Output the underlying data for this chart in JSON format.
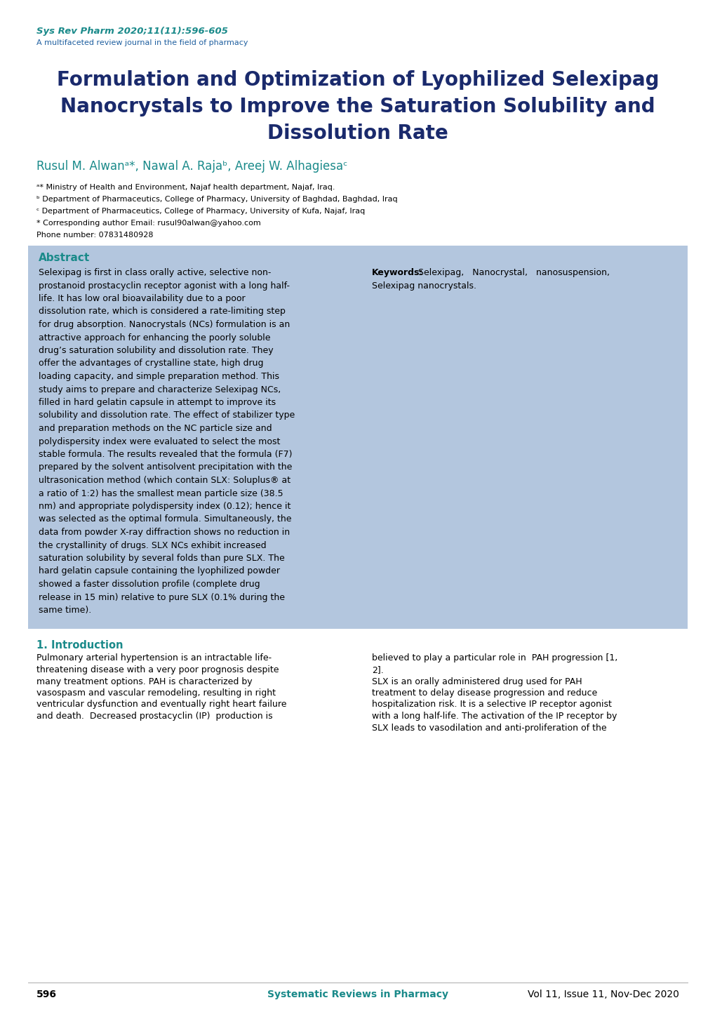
{
  "page_bg": "#ffffff",
  "header_journal": "Sys Rev Pharm 2020;11(11):596-605",
  "header_subtitle": "A multifaceted review journal in the field of pharmacy",
  "header_color": "#1a8a8a",
  "header_subtitle_color": "#2060a0",
  "title_line1": "Formulation and Optimization of Lyophilized Selexipag",
  "title_line2": "Nanocrystals to Improve the Saturation Solubility and",
  "title_line3": "Dissolution Rate",
  "title_color": "#1a2a6c",
  "authors": "Rusul M. Alwanᵃ*, Nawal A. Rajaᵇ, Areej W. Alhagiesaᶜ",
  "authors_color": "#1a8a8a",
  "affil_a": "ᵃ* Ministry of Health and Environment, Najaf health department, Najaf, Iraq.",
  "affil_b": "ᵇ Department of Pharmaceutics, College of Pharmacy, University of Baghdad, Baghdad, Iraq",
  "affil_c": "ᶜ Department of Pharmaceutics, College of Pharmacy, University of Kufa, Najaf, Iraq",
  "affil_corr": "* Corresponding author Email: rusul90alwan@yahoo.com",
  "affil_phone": "Phone number: 07831480928",
  "affil_color": "#000000",
  "abstract_bg": "#b3c6de",
  "abstract_title": "Abstract",
  "abstract_title_color": "#1a8a8a",
  "abstract_left_lines": [
    "Selexipag is first in class orally active, selective non-",
    "prostanoid prostacyclin receptor agonist with a long half-",
    "life. It has low oral bioavailability due to a poor",
    "dissolution rate, which is considered a rate-limiting step",
    "for drug absorption. Nanocrystals (NCs) formulation is an",
    "attractive approach for enhancing the poorly soluble",
    "drug’s saturation solubility and dissolution rate. They",
    "offer the advantages of crystalline state, high drug",
    "loading capacity, and simple preparation method. This",
    "study aims to prepare and characterize Selexipag NCs,",
    "filled in hard gelatin capsule in attempt to improve its",
    "solubility and dissolution rate. The effect of stabilizer type",
    "and preparation methods on the NC particle size and",
    "polydispersity index were evaluated to select the most",
    "stable formula. The results revealed that the formula (F7)",
    "prepared by the solvent antisolvent precipitation with the",
    "ultrasonication method (which contain SLX: Soluplus® at",
    "a ratio of 1:2) has the smallest mean particle size (38.5",
    "nm) and appropriate polydispersity index (0.12); hence it",
    "was selected as the optimal formula. Simultaneously, the",
    "data from powder X-ray diffraction shows no reduction in",
    "the crystallinity of drugs. SLX NCs exhibit increased",
    "saturation solubility by several folds than pure SLX. The",
    "hard gelatin capsule containing the lyophilized powder",
    "showed a faster dissolution profile (complete drug",
    "release in 15 min) relative to pure SLX (0.1% during the",
    "same time)."
  ],
  "abstract_right_line1_bold": "Keywords:",
  "abstract_right_line1_rest": "  Selexipag,   Nanocrystal,   nanosuspension,",
  "abstract_right_line2": "Selexipag nanocrystals.",
  "abstract_text_color": "#000000",
  "intro_title": "1. Introduction",
  "intro_title_color": "#1a8a8a",
  "intro_left_lines": [
    "Pulmonary arterial hypertension is an intractable life-",
    "threatening disease with a very poor prognosis despite",
    "many treatment options. PAH is characterized by",
    "vasospasm and vascular remodeling, resulting in right",
    "ventricular dysfunction and eventually right heart failure",
    "and death.  Decreased prostacyclin (IP)  production is"
  ],
  "intro_right_lines": [
    "believed to play a particular role in  PAH progression [1,",
    "2].",
    "SLX is an orally administered drug used for PAH",
    "treatment to delay disease progression and reduce",
    "hospitalization risk. It is a selective IP receptor agonist",
    "with a long half-life. The activation of the IP receptor by",
    "SLX leads to vasodilation and anti-proliferation of the"
  ],
  "footer_page": "596",
  "footer_journal": "Systematic Reviews in Pharmacy",
  "footer_vol": "Vol 11, Issue 11, Nov-Dec 2020",
  "footer_journal_color": "#1a8a8a",
  "footer_text_color": "#000000"
}
